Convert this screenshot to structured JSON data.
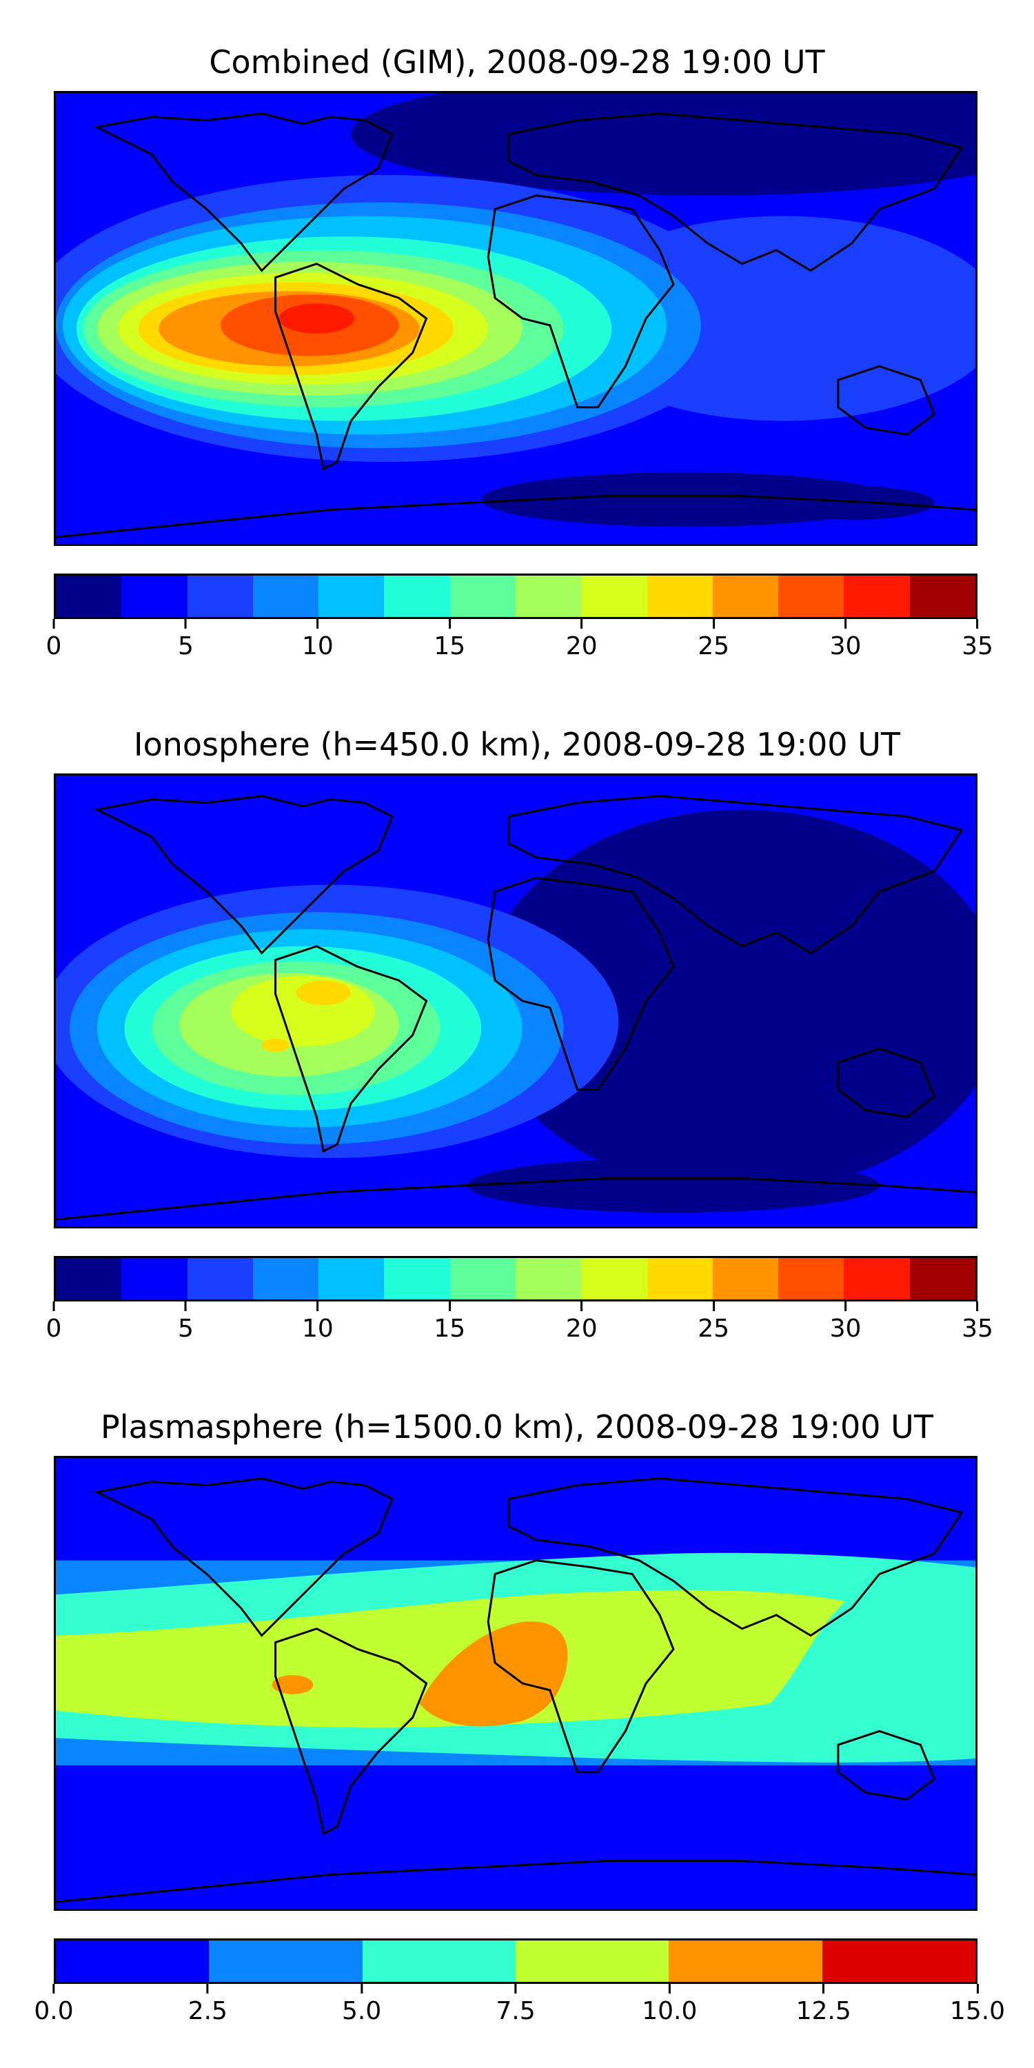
{
  "chart_data": [
    {
      "type": "heatmap",
      "title": "Combined (GIM), 2008-09-28 19:00 UT",
      "xlabel": "",
      "ylabel": "",
      "colorbar": {
        "boundaries": [
          0,
          2.5,
          5,
          7.5,
          10,
          12.5,
          15,
          17.5,
          20,
          22.5,
          25,
          27.5,
          30,
          32.5,
          35
        ],
        "tick_values": [
          0,
          5,
          10,
          15,
          20,
          25,
          30,
          35
        ],
        "tick_labels": [
          "0",
          "5",
          "10",
          "15",
          "20",
          "25",
          "30",
          "35"
        ],
        "colors": [
          "#00008b",
          "#0000ff",
          "#1a3fff",
          "#0a84ff",
          "#00c0ff",
          "#22ffd8",
          "#5cff9a",
          "#a4ff5a",
          "#d6ff1e",
          "#ffd900",
          "#ff9400",
          "#ff5000",
          "#ff1a00",
          "#a00000"
        ],
        "range": [
          0,
          35
        ]
      },
      "features": [
        "Peak of about 30 over northern South America",
        "Values 20-25 across tropical eastern Pacific and western Atlantic",
        "Values 10-15 over Atlantic and Africa",
        "Values below 5 over northern Eurasia and polar regions"
      ]
    },
    {
      "type": "heatmap",
      "title": "Ionosphere  (h=450.0 km), 2008-09-28 19:00 UT",
      "xlabel": "",
      "ylabel": "",
      "colorbar": {
        "boundaries": [
          0,
          2.5,
          5,
          7.5,
          10,
          12.5,
          15,
          17.5,
          20,
          22.5,
          25,
          27.5,
          30,
          32.5,
          35
        ],
        "tick_values": [
          0,
          5,
          10,
          15,
          20,
          25,
          30,
          35
        ],
        "tick_labels": [
          "0",
          "5",
          "10",
          "15",
          "20",
          "25",
          "30",
          "35"
        ],
        "colors": [
          "#00008b",
          "#0000ff",
          "#1a3fff",
          "#0a84ff",
          "#00c0ff",
          "#22ffd8",
          "#5cff9a",
          "#a4ff5a",
          "#d6ff1e",
          "#ffd900",
          "#ff9400",
          "#ff5000",
          "#ff1a00",
          "#a00000"
        ],
        "range": [
          0,
          35
        ]
      },
      "features": [
        "Peak of about 22.5-25 over northern South America",
        "Values 15-20 across tropical Americas",
        "Values below 2.5 over Africa, Asia and Indian Ocean"
      ]
    },
    {
      "type": "heatmap",
      "title": "Plasmasphere (h=1500.0 km), 2008-09-28 19:00 UT",
      "xlabel": "",
      "ylabel": "",
      "colorbar": {
        "boundaries": [
          0,
          2.5,
          5,
          7.5,
          10,
          12.5,
          15
        ],
        "tick_values": [
          0,
          2.5,
          5,
          7.5,
          10,
          12.5,
          15
        ],
        "tick_labels": [
          "0.0",
          "2.5",
          "5.0",
          "7.5",
          "10.0",
          "12.5",
          "15.0"
        ],
        "colors": [
          "#0000ff",
          "#0a84ff",
          "#33ffd0",
          "#c0ff30",
          "#ff9400",
          "#dd0000"
        ],
        "range": [
          0,
          15
        ]
      },
      "features": [
        "Band of 7.5-10 along the equator",
        "Maximum 10-12.5 over South Atlantic near Africa",
        "Values 5-7.5 in mid-latitudes",
        "Values below 2.5 at high latitudes"
      ]
    }
  ]
}
